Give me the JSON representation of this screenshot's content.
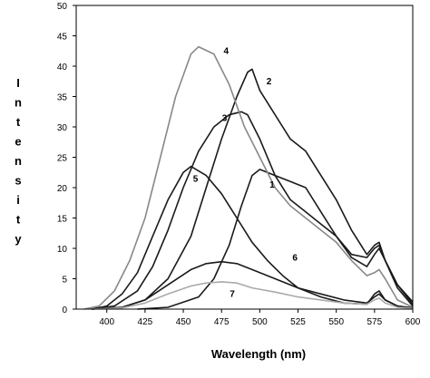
{
  "chart_data": {
    "type": "line",
    "title": "",
    "xlabel": "Wavelength (nm)",
    "ylabel": "Intensity",
    "xlim": [
      380,
      600
    ],
    "ylim": [
      0,
      50
    ],
    "xticks": [
      400,
      425,
      450,
      475,
      500,
      525,
      550,
      575,
      600
    ],
    "yticks": [
      0,
      5,
      10,
      15,
      20,
      25,
      30,
      35,
      40,
      45,
      50
    ],
    "grid": false,
    "legend": "none",
    "series": [
      {
        "name": "1",
        "color": "#1a1a1a",
        "points": [
          [
            420,
            0
          ],
          [
            440,
            0.3
          ],
          [
            460,
            2
          ],
          [
            470,
            5
          ],
          [
            480,
            10.5
          ],
          [
            488,
            17
          ],
          [
            495,
            22
          ],
          [
            500,
            23
          ],
          [
            510,
            22
          ],
          [
            520,
            21
          ],
          [
            530,
            20
          ],
          [
            540,
            16
          ],
          [
            550,
            12
          ],
          [
            560,
            8.5
          ],
          [
            570,
            7
          ],
          [
            575,
            9
          ],
          [
            578,
            10
          ],
          [
            582,
            8
          ],
          [
            590,
            4
          ],
          [
            600,
            1.2
          ]
        ]
      },
      {
        "name": "2",
        "color": "#1a1a1a",
        "points": [
          [
            390,
            0
          ],
          [
            410,
            0.3
          ],
          [
            425,
            1.5
          ],
          [
            440,
            5
          ],
          [
            455,
            12
          ],
          [
            465,
            20
          ],
          [
            475,
            28
          ],
          [
            485,
            35
          ],
          [
            492,
            39
          ],
          [
            495,
            39.5
          ],
          [
            500,
            36
          ],
          [
            510,
            32
          ],
          [
            520,
            28
          ],
          [
            530,
            26
          ],
          [
            540,
            22
          ],
          [
            550,
            18
          ],
          [
            560,
            13
          ],
          [
            570,
            9
          ],
          [
            575,
            10.5
          ],
          [
            578,
            11
          ],
          [
            582,
            8
          ],
          [
            590,
            4
          ],
          [
            600,
            0.8
          ]
        ]
      },
      {
        "name": "3",
        "color": "#1a1a1a",
        "points": [
          [
            390,
            0
          ],
          [
            405,
            0.5
          ],
          [
            420,
            3
          ],
          [
            430,
            7
          ],
          [
            440,
            13
          ],
          [
            450,
            20
          ],
          [
            460,
            26
          ],
          [
            470,
            30
          ],
          [
            480,
            32
          ],
          [
            488,
            32.5
          ],
          [
            492,
            32
          ],
          [
            500,
            28
          ],
          [
            510,
            22
          ],
          [
            520,
            18
          ],
          [
            530,
            16
          ],
          [
            540,
            14
          ],
          [
            550,
            12
          ],
          [
            560,
            9
          ],
          [
            570,
            8.5
          ],
          [
            575,
            10
          ],
          [
            578,
            10.5
          ],
          [
            582,
            8
          ],
          [
            590,
            3.5
          ],
          [
            600,
            0.5
          ]
        ]
      },
      {
        "name": "4",
        "color": "#888888",
        "points": [
          [
            385,
            0
          ],
          [
            395,
            0.5
          ],
          [
            405,
            3
          ],
          [
            415,
            8
          ],
          [
            425,
            15
          ],
          [
            435,
            25
          ],
          [
            445,
            35
          ],
          [
            455,
            42
          ],
          [
            460,
            43.2
          ],
          [
            470,
            42
          ],
          [
            480,
            37
          ],
          [
            490,
            30
          ],
          [
            500,
            25
          ],
          [
            510,
            20
          ],
          [
            520,
            17
          ],
          [
            530,
            15
          ],
          [
            540,
            13
          ],
          [
            550,
            11
          ],
          [
            560,
            8
          ],
          [
            570,
            5.5
          ],
          [
            575,
            6
          ],
          [
            578,
            6.5
          ],
          [
            582,
            5
          ],
          [
            590,
            1.5
          ],
          [
            600,
            0.3
          ]
        ]
      },
      {
        "name": "5",
        "color": "#1a1a1a",
        "points": [
          [
            390,
            0
          ],
          [
            400,
            0.5
          ],
          [
            410,
            2.5
          ],
          [
            420,
            6
          ],
          [
            430,
            12
          ],
          [
            440,
            18
          ],
          [
            450,
            22.5
          ],
          [
            455,
            23.5
          ],
          [
            465,
            22
          ],
          [
            475,
            19
          ],
          [
            485,
            15
          ],
          [
            495,
            11
          ],
          [
            505,
            8
          ],
          [
            515,
            5.5
          ],
          [
            525,
            3.5
          ],
          [
            540,
            2
          ],
          [
            555,
            1
          ],
          [
            570,
            0.8
          ],
          [
            575,
            2.5
          ],
          [
            578,
            3
          ],
          [
            582,
            1.5
          ],
          [
            590,
            0.5
          ],
          [
            600,
            0.2
          ]
        ]
      },
      {
        "name": "6",
        "color": "#1a1a1a",
        "points": [
          [
            390,
            0
          ],
          [
            410,
            0.3
          ],
          [
            425,
            1.5
          ],
          [
            440,
            4
          ],
          [
            455,
            6.5
          ],
          [
            465,
            7.5
          ],
          [
            475,
            7.8
          ],
          [
            485,
            7.5
          ],
          [
            495,
            6.5
          ],
          [
            510,
            5
          ],
          [
            525,
            3.5
          ],
          [
            540,
            2.5
          ],
          [
            555,
            1.5
          ],
          [
            570,
            1
          ],
          [
            575,
            2
          ],
          [
            578,
            2.5
          ],
          [
            582,
            1.5
          ],
          [
            590,
            0.5
          ],
          [
            600,
            0.1
          ]
        ]
      },
      {
        "name": "7",
        "color": "#aaaaaa",
        "points": [
          [
            390,
            0
          ],
          [
            410,
            0.2
          ],
          [
            425,
            1
          ],
          [
            440,
            2.5
          ],
          [
            455,
            3.8
          ],
          [
            465,
            4.3
          ],
          [
            475,
            4.5
          ],
          [
            485,
            4.3
          ],
          [
            495,
            3.5
          ],
          [
            510,
            2.8
          ],
          [
            525,
            2
          ],
          [
            540,
            1.5
          ],
          [
            555,
            1
          ],
          [
            570,
            0.8
          ],
          [
            575,
            1.5
          ],
          [
            578,
            1.8
          ],
          [
            582,
            1
          ],
          [
            590,
            0.3
          ],
          [
            600,
            0.1
          ]
        ]
      }
    ],
    "annotations": [
      {
        "text": "1",
        "x": 508,
        "y": 20
      },
      {
        "text": "2",
        "x": 506,
        "y": 37
      },
      {
        "text": "3",
        "x": 477,
        "y": 31
      },
      {
        "text": "4",
        "x": 478,
        "y": 42
      },
      {
        "text": "5",
        "x": 458,
        "y": 21
      },
      {
        "text": "6",
        "x": 523,
        "y": 8
      },
      {
        "text": "7",
        "x": 482,
        "y": 2
      }
    ]
  }
}
